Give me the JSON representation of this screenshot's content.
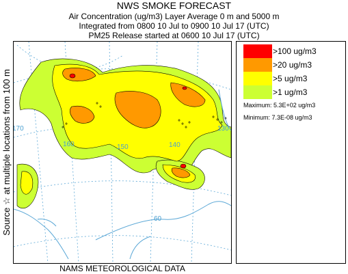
{
  "header": {
    "title": "NWS SMOKE FORECAST",
    "line1": "Air Concentration (ug/m3) Layer Average    0 m and  5000 m",
    "line2": "Integrated from 0800 10 Jul to 0900 10 Jul 17 (UTC)",
    "line3": "PM25 Release started at 0600 10 Jul 17 (UTC)"
  },
  "side_label": "Source ☆ at multiple locations from   100 m",
  "map": {
    "grid_labels": [
      "170",
      "160",
      "150",
      "140",
      "130",
      "60"
    ],
    "colors": {
      "coast": "#5aa7d6",
      "grid": "#5aa7d6",
      "contour": "#000000",
      "source_marker": "#000000"
    }
  },
  "legend": {
    "items": [
      {
        "label": ">100 ug/m3",
        "color": "#ff0000"
      },
      {
        "label": ">20 ug/m3",
        "color": "#ff9900"
      },
      {
        "label": ">5 ug/m3",
        "color": "#ffff00"
      },
      {
        "label": ">1 ug/m3",
        "color": "#ccff33"
      }
    ],
    "maximum": "Maximum: 5.3E+02 ug/m3",
    "minimum": "Minimum: 7.3E-08 ug/m3"
  },
  "footer": "NAMS METEOROLOGICAL DATA"
}
